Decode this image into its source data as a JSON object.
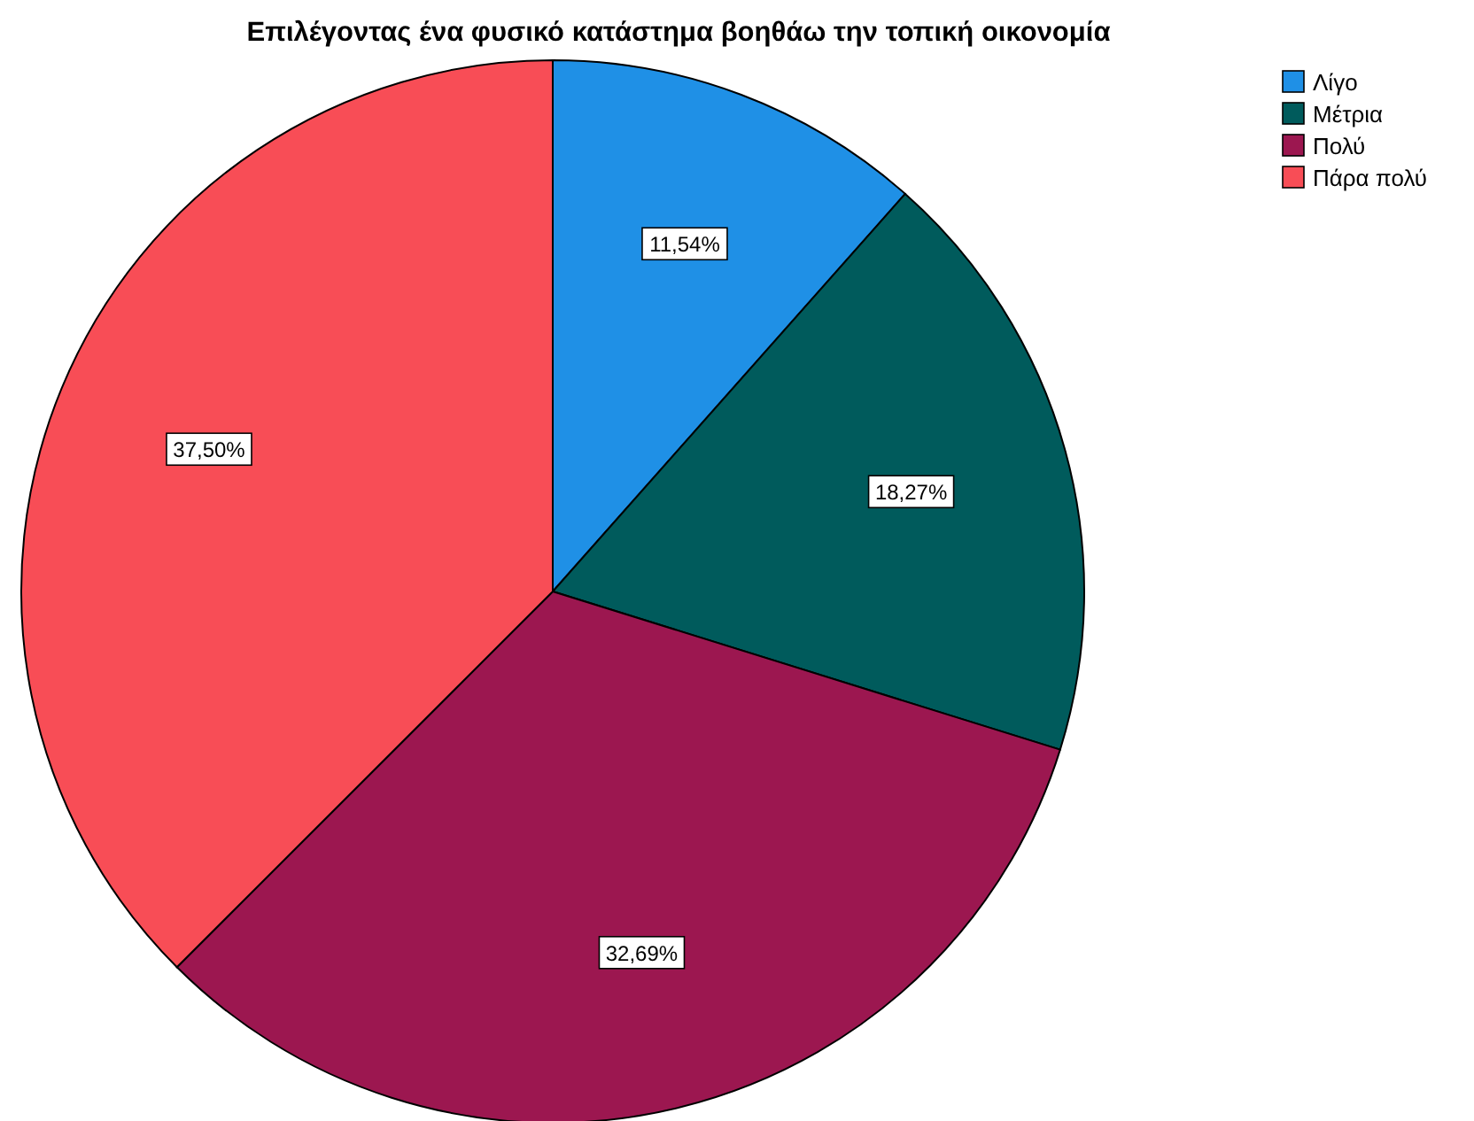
{
  "chart_data": {
    "type": "pie",
    "title": "Επιλέγοντας ένα φυσικό κατάστημα βοηθάω την τοπική οικονομία",
    "categories": [
      "Λίγο",
      "Μέτρια",
      "Πολύ",
      "Πάρα πολύ"
    ],
    "values": [
      11.54,
      18.27,
      32.69,
      37.5
    ],
    "value_labels": [
      "11,54%",
      "18,27%",
      "32,69%",
      "37,50%"
    ],
    "colors": [
      "#1f90e6",
      "#005b5c",
      "#9c1750",
      "#f84d56"
    ],
    "legend": "top right"
  }
}
